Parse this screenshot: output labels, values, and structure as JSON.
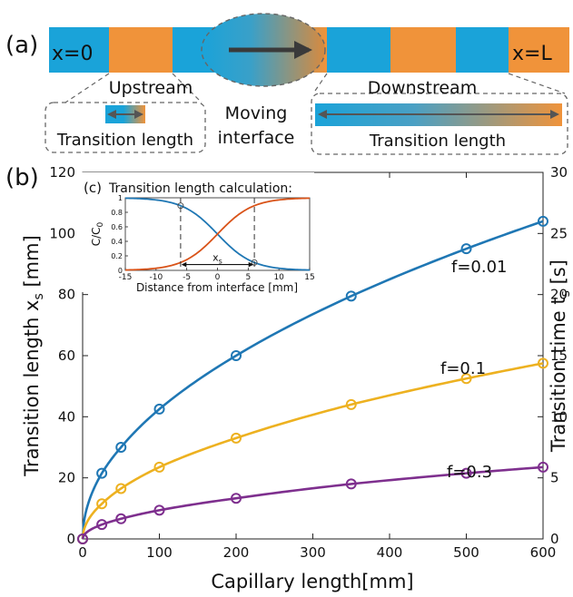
{
  "panel_a": {
    "label": "(a)",
    "left_end": "x=0",
    "right_end": "x=L",
    "upstream": "Upstream",
    "downstream": "Downstream",
    "moving": "Moving",
    "interface": "interface",
    "transition_left": "Transition length",
    "transition_right": "Transition length",
    "colors": {
      "blue": "#1aa3d9",
      "orange": "#f0933a",
      "arrow": "#3a3a3a"
    }
  },
  "chart_data": [
    {
      "panel": "(b)",
      "type": "line",
      "xlabel": "Capillary length[mm]",
      "ylabel": "Transition length x",
      "ylabel_sub": "s",
      "ylabel_unit": " [mm]",
      "y2label": "Transition time t",
      "y2label_sub": "s",
      "y2label_unit": " [s]",
      "xlim": [
        0,
        600
      ],
      "ylim": [
        0,
        120
      ],
      "y2lim": [
        0,
        30
      ],
      "xticks": [
        0,
        100,
        200,
        300,
        400,
        500,
        600
      ],
      "yticks": [
        0,
        20,
        40,
        60,
        80,
        100,
        120
      ],
      "y2ticks": [
        0,
        5,
        10,
        15,
        20,
        25,
        30
      ],
      "x": [
        0,
        25,
        50,
        100,
        200,
        350,
        500,
        600
      ],
      "series": [
        {
          "name": "f=0.01",
          "color": "#1f77b4",
          "values": [
            0,
            21.5,
            30,
            42.5,
            60,
            79.5,
            95,
            104
          ]
        },
        {
          "name": "f=0.1",
          "color": "#edb120",
          "values": [
            0,
            11.5,
            16.5,
            23.5,
            33,
            44,
            52.5,
            57.5
          ]
        },
        {
          "name": "f=0.3",
          "color": "#7e2f8e",
          "values": [
            0,
            4.7,
            6.6,
            9.4,
            13.3,
            18,
            21.5,
            23.5
          ]
        }
      ],
      "grid": false
    },
    {
      "panel": "(c)",
      "type": "line",
      "title": "Transition length calculation:",
      "xlabel": "Distance from interface [mm]",
      "ylabel": "C/C",
      "ylabel_sub": "0",
      "annotation": "x",
      "annotation_sub": "s",
      "xlim": [
        -15,
        15
      ],
      "ylim": [
        0,
        1
      ],
      "xticks": [
        -15,
        -10,
        -5,
        0,
        5,
        10,
        15
      ],
      "yticks": [
        0,
        0.2,
        0.4,
        0.6,
        0.8,
        1
      ],
      "ytick_labels": [
        "0",
        "0.2",
        "0.4",
        "0.6",
        "0.8",
        "1"
      ],
      "curve_steepness": 0.35,
      "markers_x": [
        -6,
        6
      ],
      "series": [
        {
          "color": "#1f77b4",
          "shape": "decreasing"
        },
        {
          "color": "#d95319",
          "shape": "increasing"
        }
      ]
    }
  ]
}
